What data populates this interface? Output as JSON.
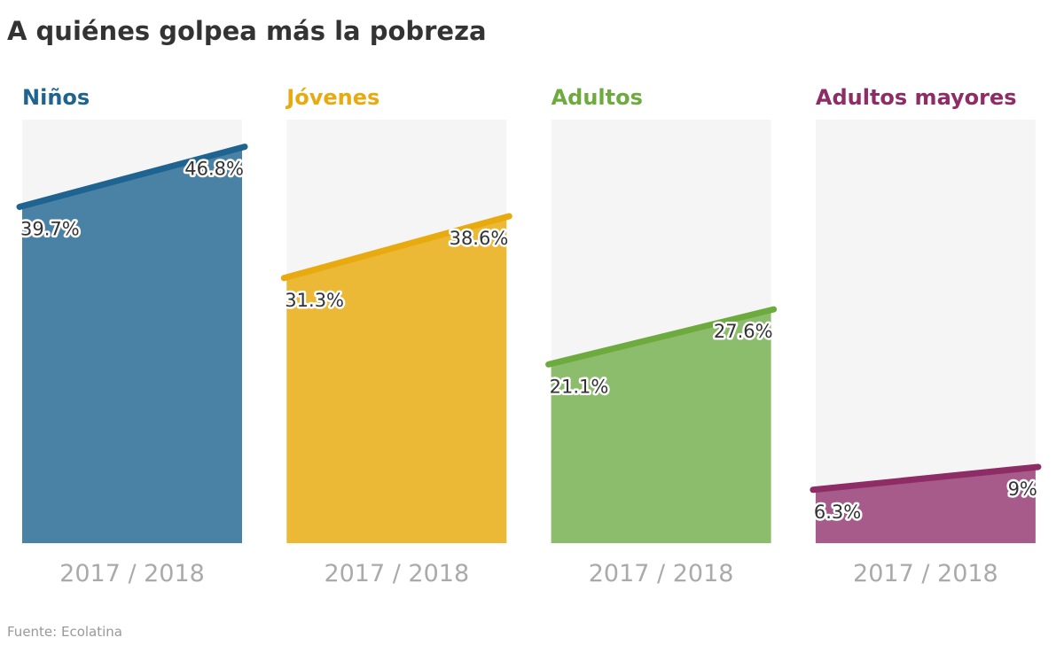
{
  "title": "A quiénes golpea más la pobreza",
  "source": "Fuente: Ecolatina",
  "chart_data": [
    {
      "type": "area",
      "title": "Niños",
      "categories": [
        "2017",
        "2018"
      ],
      "xlabel": "2017 / 2018",
      "values": [
        39.7,
        46.8
      ],
      "labels": [
        "39.7%",
        "46.8%"
      ],
      "ylim": [
        0,
        50
      ],
      "line_color": "#1f6391",
      "fill_color": "#4a82a6"
    },
    {
      "type": "area",
      "title": "Jóvenes",
      "categories": [
        "2017",
        "2018"
      ],
      "xlabel": "2017 / 2018",
      "values": [
        31.3,
        38.6
      ],
      "labels": [
        "31.3%",
        "38.6%"
      ],
      "ylim": [
        0,
        50
      ],
      "line_color": "#e8aa0e",
      "fill_color": "#ecb937"
    },
    {
      "type": "area",
      "title": "Adultos",
      "categories": [
        "2017",
        "2018"
      ],
      "xlabel": "2017 / 2018",
      "values": [
        21.1,
        27.6
      ],
      "labels": [
        "21.1%",
        "27.6%"
      ],
      "ylim": [
        0,
        50
      ],
      "line_color": "#6dab3f",
      "fill_color": "#8cbd6c"
    },
    {
      "type": "area",
      "title": "Adultos mayores",
      "categories": [
        "2017",
        "2018"
      ],
      "xlabel": "2017 / 2018",
      "values": [
        6.3,
        9
      ],
      "labels": [
        "6.3%",
        "9%"
      ],
      "ylim": [
        0,
        50
      ],
      "line_color": "#8e2c66",
      "fill_color": "#a65b8b"
    }
  ]
}
